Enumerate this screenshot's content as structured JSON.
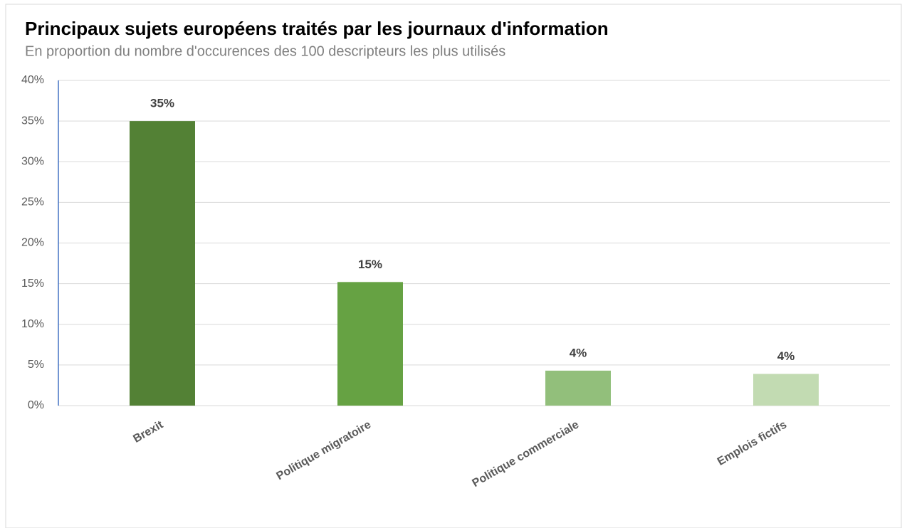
{
  "chart_data": {
    "type": "bar",
    "title": "Principaux sujets européens traités par les journaux d'information",
    "subtitle": "En proportion du nombre d'occurences des 100 descripteurs les plus utilisés",
    "categories": [
      "Brexit",
      "Politique migratoire",
      "Politique commerciale",
      "Emplois fictifs"
    ],
    "values": [
      35,
      15.2,
      4.3,
      3.9
    ],
    "value_labels": [
      "35%",
      "15%",
      "4%",
      "4%"
    ],
    "colors": [
      "#538135",
      "#66a243",
      "#92bf7b",
      "#c2dbb2"
    ],
    "ylim": [
      0,
      40
    ],
    "yticks": [
      {
        "value": 0,
        "label": "0%"
      },
      {
        "value": 5,
        "label": "5%"
      },
      {
        "value": 10,
        "label": "10%"
      },
      {
        "value": 15,
        "label": "15%"
      },
      {
        "value": 20,
        "label": "20%"
      },
      {
        "value": 25,
        "label": "25%"
      },
      {
        "value": 30,
        "label": "30%"
      },
      {
        "value": 35,
        "label": "35%"
      },
      {
        "value": 40,
        "label": "40%"
      }
    ],
    "grid": true
  }
}
